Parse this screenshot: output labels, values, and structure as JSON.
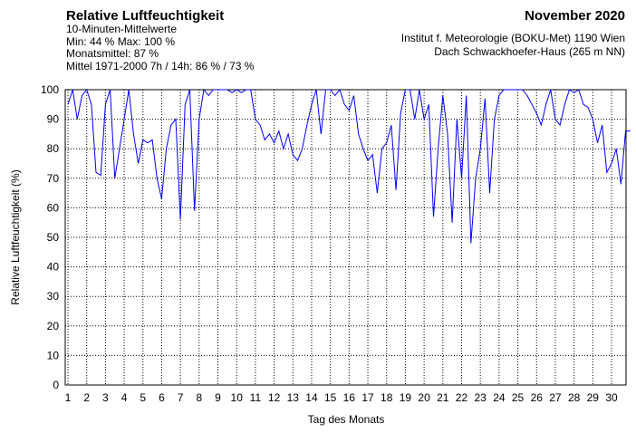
{
  "chart_data": {
    "type": "line",
    "title": "Relative Luftfeuchtigkeit",
    "subtitle": "10-Minuten-Mittelwerte",
    "stats": [
      "Min:  44 %   Max: 100 %",
      "Monatsmittel:  87 %",
      "Mittel 1971-2000 7h / 14h:  86 % / 73 %"
    ],
    "period": "November 2020",
    "source": [
      "Institut f. Meteorologie (BOKU-Met) 1190 Wien",
      "Dach Schwackhoefer-Haus (265 m NN)"
    ],
    "xlabel": "Tag des Monats",
    "ylabel": "Relative Luftfeuchtigkeit (%)",
    "xlim": [
      1,
      31
    ],
    "ylim": [
      0,
      100
    ],
    "xticks": [
      1,
      2,
      3,
      4,
      5,
      6,
      7,
      8,
      9,
      10,
      11,
      12,
      13,
      14,
      15,
      16,
      17,
      18,
      19,
      20,
      21,
      22,
      23,
      24,
      25,
      26,
      27,
      28,
      29,
      30
    ],
    "yticks": [
      0,
      10,
      20,
      30,
      40,
      50,
      60,
      70,
      80,
      90,
      100
    ],
    "grid": true,
    "x": [
      1,
      1.25,
      1.5,
      1.75,
      2,
      2.25,
      2.5,
      2.75,
      3,
      3.25,
      3.5,
      3.75,
      4,
      4.25,
      4.5,
      4.75,
      5,
      5.25,
      5.5,
      5.75,
      6,
      6.25,
      6.5,
      6.75,
      7,
      7.25,
      7.5,
      7.75,
      8,
      8.25,
      8.5,
      8.75,
      9,
      9.25,
      9.5,
      9.75,
      10,
      10.25,
      10.5,
      10.75,
      11,
      11.25,
      11.5,
      11.75,
      12,
      12.25,
      12.5,
      12.75,
      13,
      13.25,
      13.5,
      13.75,
      14,
      14.25,
      14.5,
      14.75,
      15,
      15.25,
      15.5,
      15.75,
      16,
      16.25,
      16.5,
      16.75,
      17,
      17.25,
      17.5,
      17.75,
      18,
      18.25,
      18.5,
      18.75,
      19,
      19.25,
      19.5,
      19.75,
      20,
      20.25,
      20.5,
      20.75,
      21,
      21.25,
      21.5,
      21.75,
      22,
      22.25,
      22.5,
      22.75,
      23,
      23.25,
      23.5,
      23.75,
      24,
      24.25,
      24.5,
      24.75,
      25,
      25.25,
      25.5,
      25.75,
      26,
      26.25,
      26.5,
      26.75,
      27,
      27.25,
      27.5,
      27.75,
      28,
      28.25,
      28.5,
      28.75,
      29,
      29.25,
      29.5,
      29.75,
      30,
      30.25,
      30.5,
      30.75,
      31
    ],
    "series": [
      {
        "name": "Relative Luftfeuchtigkeit",
        "color": "#0000ff",
        "values": [
          95,
          100,
          90,
          98,
          100,
          95,
          72,
          71,
          95,
          100,
          70,
          80,
          90,
          100,
          85,
          75,
          83,
          82,
          83,
          70,
          63,
          80,
          88,
          90,
          56,
          95,
          100,
          59,
          90,
          100,
          98,
          100,
          100,
          100,
          100,
          99,
          100,
          99,
          100,
          100,
          90,
          88,
          83,
          85,
          82,
          86,
          80,
          85,
          78,
          76,
          80,
          88,
          95,
          100,
          85,
          100,
          100,
          98,
          100,
          95,
          93,
          98,
          85,
          80,
          76,
          78,
          65,
          80,
          82,
          88,
          66,
          92,
          100,
          100,
          90,
          100,
          90,
          95,
          57,
          80,
          98,
          85,
          55,
          90,
          70,
          98,
          48,
          70,
          80,
          97,
          65,
          90,
          98,
          100,
          100,
          100,
          100,
          100,
          98,
          95,
          92,
          88,
          95,
          100,
          90,
          88,
          95,
          100,
          99,
          100,
          95,
          94,
          90,
          82,
          88,
          72,
          75,
          80,
          68,
          86,
          86
        ]
      }
    ]
  }
}
